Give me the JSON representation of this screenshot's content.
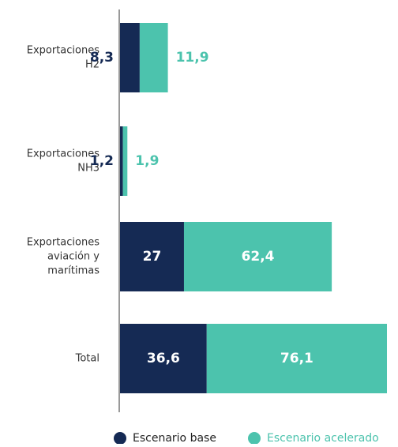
{
  "chart_data": {
    "type": "bar_stacked_horizontal",
    "categories": [
      [
        "Exportaciones",
        "H2"
      ],
      [
        "Exportaciones",
        "NH3"
      ],
      [
        "Exportaciones",
        "aviación y",
        "marítimas"
      ],
      [
        "Total"
      ]
    ],
    "series": [
      {
        "name": "Escenario base",
        "color": "#152a54",
        "values": [
          8.3,
          1.2,
          27,
          36.6
        ],
        "value_labels": [
          "8,3",
          "1,2",
          "27",
          "36,6"
        ]
      },
      {
        "name": "Escenario acelerado",
        "color": "#4cc3ad",
        "values": [
          11.9,
          1.9,
          62.4,
          76.1
        ],
        "value_labels": [
          "11,9",
          "1,9",
          "62,4",
          "76,1"
        ]
      }
    ]
  }
}
